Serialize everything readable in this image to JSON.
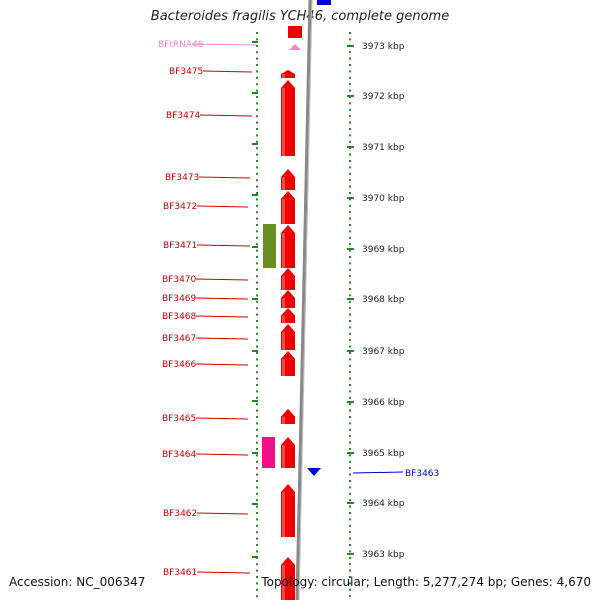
{
  "title": "Bacteroides fragilis YCH46, complete genome",
  "footer": {
    "accession": "Accession: NC_006347",
    "topology": "Topology: circular; Length: 5,277,274 bp; Genes: 4,670"
  },
  "colors": {
    "forward_gene": "#ee0000",
    "reverse_gene": "#0000dd",
    "rna": "#ee88cc",
    "label_forward": "#cc0000",
    "label_reverse": "#0000cc",
    "label_rna": "#ee88cc",
    "tick": "#228822",
    "backbone": "#888888",
    "olive_feature": "#6b8e23",
    "magenta_feature": "#ee1188"
  },
  "kbp_marks": [
    "3973 kbp",
    "3972 kbp",
    "3971 kbp",
    "3970 kbp",
    "3969 kbp",
    "3968 kbp",
    "3967 kbp",
    "3966 kbp",
    "3965 kbp",
    "3964 kbp",
    "3963 kbp"
  ],
  "genes": [
    {
      "label": "BFtRNA48",
      "kind": "rna"
    },
    {
      "label": "BF3475",
      "kind": "forward"
    },
    {
      "label": "BF3474",
      "kind": "forward"
    },
    {
      "label": "BF3473",
      "kind": "forward"
    },
    {
      "label": "BF3472",
      "kind": "forward"
    },
    {
      "label": "BF3471",
      "kind": "forward"
    },
    {
      "label": "BF3470",
      "kind": "forward"
    },
    {
      "label": "BF3469",
      "kind": "forward"
    },
    {
      "label": "BF3468",
      "kind": "forward"
    },
    {
      "label": "BF3467",
      "kind": "forward"
    },
    {
      "label": "BF3466",
      "kind": "forward"
    },
    {
      "label": "BF3465",
      "kind": "forward"
    },
    {
      "label": "BF3464",
      "kind": "forward"
    },
    {
      "label": "BF3463",
      "kind": "reverse"
    },
    {
      "label": "BF3462",
      "kind": "forward"
    },
    {
      "label": "BF3461",
      "kind": "forward"
    }
  ],
  "side_features": [
    {
      "kind": "olive",
      "gene": "BF3471"
    },
    {
      "kind": "magenta",
      "gene": "BF3464"
    }
  ]
}
